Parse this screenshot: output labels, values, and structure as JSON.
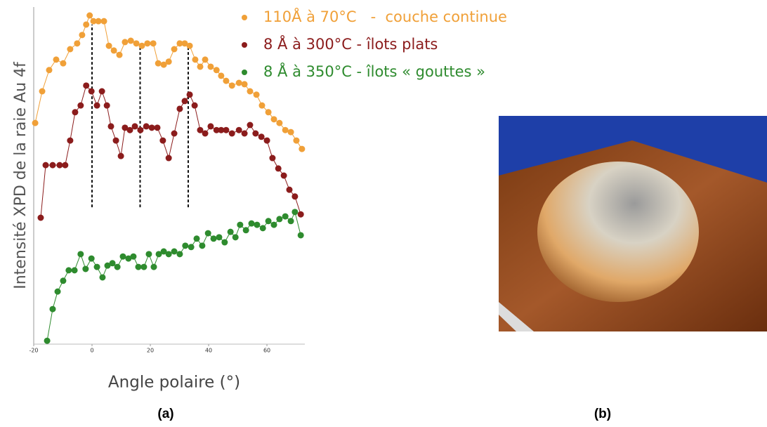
{
  "chart_data": {
    "type": "line",
    "x_label": "Angle polaire (°)",
    "y_label": "Intensité XPD de la raie Au 4f",
    "xlim": [
      -20,
      73
    ],
    "ylim": [
      0,
      100
    ],
    "xticks": [
      -20,
      0,
      20,
      40,
      60
    ],
    "panel_a": "(a)",
    "panel_b": "(b)",
    "vlines": [
      {
        "x": 0,
        "y": [
          40.6,
          94.8
        ]
      },
      {
        "x": 16.5,
        "y": [
          40.6,
          88.5
        ]
      },
      {
        "x": 33,
        "y": [
          40.6,
          88.5
        ]
      }
    ],
    "series": [
      {
        "name": "110Å à 70°C   -  couche continue",
        "color": "#f0a038",
        "x": [
          -19.5,
          -17.1,
          -14.7,
          -12.3,
          -9.9,
          -7.5,
          -5.1,
          -3.4,
          -2,
          -0.8,
          0.5,
          2.2,
          4.1,
          5.8,
          7.5,
          9.4,
          11.3,
          13.3,
          15.2,
          17.1,
          19,
          21,
          22.7,
          24.6,
          26.3,
          28.2,
          30.1,
          31.8,
          33.5,
          35.4,
          37.1,
          38.8,
          40.7,
          42.7,
          44.3,
          46,
          48,
          50.4,
          52.3,
          54.2,
          56.4,
          58.3,
          60.5,
          62.4,
          64.3,
          66.3,
          68.2,
          70.1,
          72
        ],
        "values": [
          65.6,
          75,
          81.3,
          84.4,
          83.3,
          87.5,
          89.2,
          91.7,
          94.8,
          97.5,
          95.8,
          95.8,
          95.8,
          88.5,
          87.1,
          85.8,
          89.6,
          90,
          89.2,
          88.5,
          89.2,
          89.2,
          83.3,
          82.9,
          83.8,
          87.5,
          89.2,
          89.2,
          88.5,
          84.4,
          82.3,
          84.4,
          82.3,
          81.3,
          79.6,
          78.1,
          76.7,
          77.5,
          77.1,
          75,
          74,
          70.8,
          68.8,
          66.7,
          65.6,
          63.5,
          62.9,
          60.4,
          57.9
        ]
      },
      {
        "name": "8 Å à 300°C - îlots plats",
        "color": "#8b1c1c",
        "x": [
          -17.6,
          -15.9,
          -13.5,
          -11.1,
          -9.2,
          -7.5,
          -5.8,
          -3.9,
          -2,
          -0.2,
          1.7,
          3.4,
          5.1,
          6.5,
          8.2,
          9.9,
          11.3,
          13,
          14.7,
          16.6,
          18.6,
          20.5,
          22.4,
          24.3,
          26.3,
          28.2,
          30.1,
          31.8,
          33.5,
          35.2,
          37.1,
          38.8,
          40.7,
          42.7,
          44.3,
          46,
          48,
          50.4,
          52.3,
          54.2,
          56.1,
          58.1,
          60,
          61.9,
          63.9,
          65.8,
          67.7,
          69.6,
          71.6
        ],
        "values": [
          37.5,
          53.1,
          53.1,
          53.1,
          53.1,
          60.4,
          68.8,
          70.8,
          76.7,
          75,
          70.8,
          75,
          70.8,
          64.6,
          60.4,
          55.8,
          64.2,
          63.5,
          64.6,
          63.5,
          64.6,
          64.2,
          64.2,
          60.4,
          55.2,
          62.5,
          69.8,
          72.1,
          74,
          70.8,
          63.5,
          62.5,
          64.6,
          63.5,
          63.5,
          63.5,
          62.5,
          63.5,
          62.5,
          65,
          62.5,
          61.5,
          60.4,
          55.2,
          52.1,
          50,
          45.8,
          43.8,
          38.5
        ]
      },
      {
        "name": "8 Å à 350°C - îlots « gouttes »",
        "color": "#2e8b2e",
        "x": [
          -15.4,
          -13.5,
          -11.8,
          -9.9,
          -8,
          -6,
          -3.9,
          -2.2,
          -0.2,
          1.7,
          3.6,
          5.3,
          7,
          8.7,
          10.6,
          12.5,
          14.2,
          15.9,
          17.8,
          19.5,
          21.2,
          22.9,
          24.6,
          26.3,
          28.2,
          30.1,
          32,
          34,
          35.9,
          37.8,
          39.8,
          41.7,
          43.6,
          45.5,
          47.5,
          49.2,
          50.8,
          52.8,
          54.7,
          56.6,
          58.6,
          60.5,
          62.4,
          64.3,
          66.3,
          68.2,
          69.6,
          71.6
        ],
        "values": [
          1,
          10.4,
          15.6,
          18.8,
          21.9,
          21.9,
          26.7,
          22.3,
          25.4,
          22.9,
          19.8,
          23.3,
          24,
          22.9,
          26,
          25.4,
          26,
          22.9,
          22.9,
          26.7,
          22.9,
          26.7,
          27.5,
          26.7,
          27.5,
          26.7,
          29.2,
          28.8,
          31.3,
          29.2,
          32.9,
          31.3,
          31.7,
          30.2,
          33.3,
          31.7,
          35.4,
          33.8,
          35.8,
          35.4,
          34.4,
          36.5,
          35.4,
          37.1,
          37.9,
          36.5,
          39.2,
          32.3
        ]
      }
    ]
  }
}
